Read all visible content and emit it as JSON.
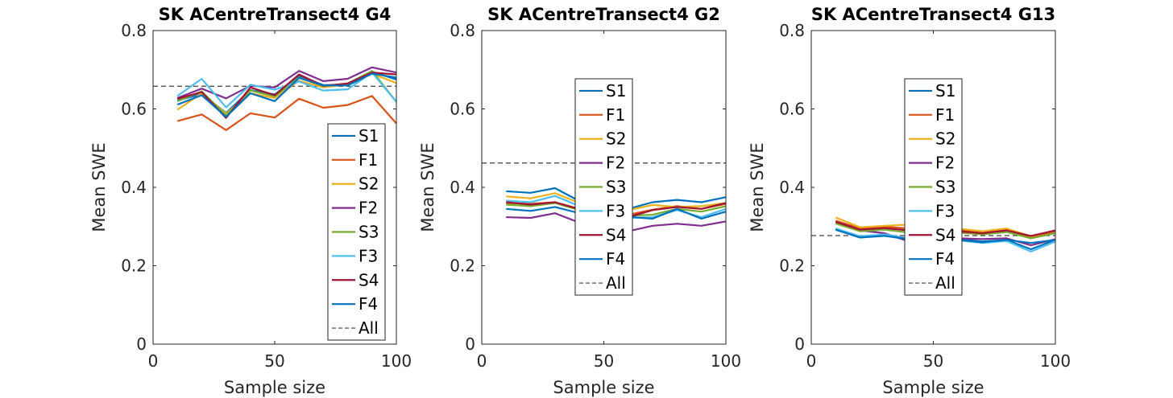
{
  "chart_data": [
    {
      "type": "line",
      "title": "SK ACentreTransect4 G4",
      "xlabel": "Sample size",
      "ylabel": "Mean SWE",
      "xlim": [
        0,
        100
      ],
      "ylim": [
        0,
        0.8
      ],
      "xticks": [
        "0",
        "50",
        "100"
      ],
      "yticks": [
        "0",
        "0.2",
        "0.4",
        "0.6",
        "0.8"
      ],
      "legend_position": "lower-right",
      "x": [
        10,
        20,
        30,
        40,
        50,
        60,
        70,
        80,
        90,
        100
      ],
      "series": [
        {
          "name": "S1",
          "color": "#0072BD",
          "values": [
            0.622,
            0.638,
            0.59,
            0.648,
            0.637,
            0.683,
            0.661,
            0.662,
            0.695,
            0.675
          ]
        },
        {
          "name": "F1",
          "color": "#D95319",
          "values": [
            0.569,
            0.586,
            0.546,
            0.589,
            0.578,
            0.626,
            0.603,
            0.61,
            0.633,
            0.563
          ]
        },
        {
          "name": "S2",
          "color": "#EDB120",
          "values": [
            0.598,
            0.64,
            0.588,
            0.64,
            0.628,
            0.672,
            0.655,
            0.663,
            0.69,
            0.666
          ]
        },
        {
          "name": "F2",
          "color": "#7E2F8E",
          "values": [
            0.628,
            0.652,
            0.627,
            0.659,
            0.655,
            0.697,
            0.671,
            0.677,
            0.706,
            0.693
          ]
        },
        {
          "name": "S3",
          "color": "#77AC30",
          "values": [
            0.62,
            0.645,
            0.583,
            0.647,
            0.632,
            0.68,
            0.658,
            0.665,
            0.697,
            0.618
          ]
        },
        {
          "name": "F3",
          "color": "#4DBEEE",
          "values": [
            0.633,
            0.677,
            0.604,
            0.662,
            0.649,
            0.67,
            0.647,
            0.65,
            0.693,
            0.618
          ]
        },
        {
          "name": "S4",
          "color": "#A2142F",
          "values": [
            0.626,
            0.643,
            0.577,
            0.655,
            0.635,
            0.688,
            0.659,
            0.665,
            0.693,
            0.688
          ]
        },
        {
          "name": "F4",
          "color": "#0072BD",
          "values": [
            0.611,
            0.635,
            0.58,
            0.64,
            0.62,
            0.679,
            0.66,
            0.66,
            0.69,
            0.68
          ]
        }
      ],
      "reference": {
        "name": "All",
        "color": "#404040",
        "style": "dashed",
        "value": 0.658
      }
    },
    {
      "type": "line",
      "title": "SK ACentreTransect4 G2",
      "xlabel": "Sample size",
      "ylabel": "Mean SWE",
      "xlim": [
        0,
        100
      ],
      "ylim": [
        0,
        0.8
      ],
      "xticks": [
        "0",
        "50",
        "100"
      ],
      "yticks": [
        "0",
        "0.2",
        "0.4",
        "0.6",
        "0.8"
      ],
      "legend_position": "center",
      "x": [
        10,
        20,
        30,
        40,
        50,
        60,
        70,
        80,
        90,
        100
      ],
      "series": [
        {
          "name": "S1",
          "color": "#0072BD",
          "values": [
            0.39,
            0.386,
            0.398,
            0.365,
            0.332,
            0.345,
            0.362,
            0.368,
            0.362,
            0.375
          ]
        },
        {
          "name": "F1",
          "color": "#D95319",
          "values": [
            0.36,
            0.358,
            0.362,
            0.345,
            0.33,
            0.33,
            0.343,
            0.352,
            0.345,
            0.358
          ]
        },
        {
          "name": "S2",
          "color": "#EDB120",
          "values": [
            0.377,
            0.372,
            0.385,
            0.36,
            0.338,
            0.342,
            0.355,
            0.35,
            0.352,
            0.36
          ]
        },
        {
          "name": "F2",
          "color": "#7E2F8E",
          "values": [
            0.324,
            0.322,
            0.334,
            0.31,
            0.292,
            0.288,
            0.302,
            0.307,
            0.302,
            0.313
          ]
        },
        {
          "name": "S3",
          "color": "#77AC30",
          "values": [
            0.356,
            0.352,
            0.36,
            0.342,
            0.332,
            0.328,
            0.33,
            0.345,
            0.338,
            0.352
          ]
        },
        {
          "name": "F3",
          "color": "#4DBEEE",
          "values": [
            0.366,
            0.362,
            0.378,
            0.352,
            0.328,
            0.322,
            0.324,
            0.342,
            0.324,
            0.345
          ]
        },
        {
          "name": "S4",
          "color": "#A2142F",
          "values": [
            0.362,
            0.356,
            0.362,
            0.344,
            0.328,
            0.324,
            0.342,
            0.35,
            0.345,
            0.36
          ]
        },
        {
          "name": "F4",
          "color": "#0072BD",
          "values": [
            0.345,
            0.34,
            0.35,
            0.334,
            0.322,
            0.325,
            0.32,
            0.345,
            0.32,
            0.338
          ]
        }
      ],
      "reference": {
        "name": "All",
        "color": "#404040",
        "style": "dashed",
        "value": 0.462
      }
    },
    {
      "type": "line",
      "title": "SK ACentreTransect4 G13",
      "xlabel": "Sample size",
      "ylabel": "Mean SWE",
      "xlim": [
        0,
        100
      ],
      "ylim": [
        0,
        0.8
      ],
      "xticks": [
        "0",
        "50",
        "100"
      ],
      "yticks": [
        "0",
        "0.2",
        "0.4",
        "0.6",
        "0.8"
      ],
      "legend_position": "center",
      "x": [
        10,
        20,
        30,
        40,
        50,
        60,
        70,
        80,
        90,
        100
      ],
      "series": [
        {
          "name": "S1",
          "color": "#0072BD",
          "values": [
            0.293,
            0.272,
            0.278,
            0.266,
            0.27,
            0.268,
            0.262,
            0.266,
            0.242,
            0.266
          ]
        },
        {
          "name": "F1",
          "color": "#D95319",
          "values": [
            0.315,
            0.295,
            0.3,
            0.295,
            0.295,
            0.292,
            0.285,
            0.292,
            0.272,
            0.288
          ]
        },
        {
          "name": "S2",
          "color": "#EDB120",
          "values": [
            0.323,
            0.298,
            0.302,
            0.305,
            0.3,
            0.295,
            0.288,
            0.295,
            0.275,
            0.29
          ]
        },
        {
          "name": "F2",
          "color": "#7E2F8E",
          "values": [
            0.31,
            0.29,
            0.283,
            0.262,
            0.272,
            0.27,
            0.268,
            0.27,
            0.252,
            0.268
          ]
        },
        {
          "name": "S3",
          "color": "#77AC30",
          "values": [
            0.308,
            0.288,
            0.292,
            0.285,
            0.288,
            0.285,
            0.28,
            0.286,
            0.27,
            0.283
          ]
        },
        {
          "name": "F3",
          "color": "#4DBEEE",
          "values": [
            0.295,
            0.275,
            0.28,
            0.27,
            0.268,
            0.265,
            0.258,
            0.263,
            0.236,
            0.262
          ]
        },
        {
          "name": "S4",
          "color": "#A2142F",
          "values": [
            0.312,
            0.292,
            0.296,
            0.29,
            0.292,
            0.288,
            0.283,
            0.29,
            0.276,
            0.29
          ]
        },
        {
          "name": "F4",
          "color": "#0072BD",
          "values": [
            0.292,
            0.272,
            0.276,
            0.268,
            0.268,
            0.266,
            0.26,
            0.266,
            0.258,
            0.266
          ]
        }
      ],
      "reference": {
        "name": "All",
        "color": "#404040",
        "style": "dashed",
        "value": 0.277
      }
    }
  ]
}
